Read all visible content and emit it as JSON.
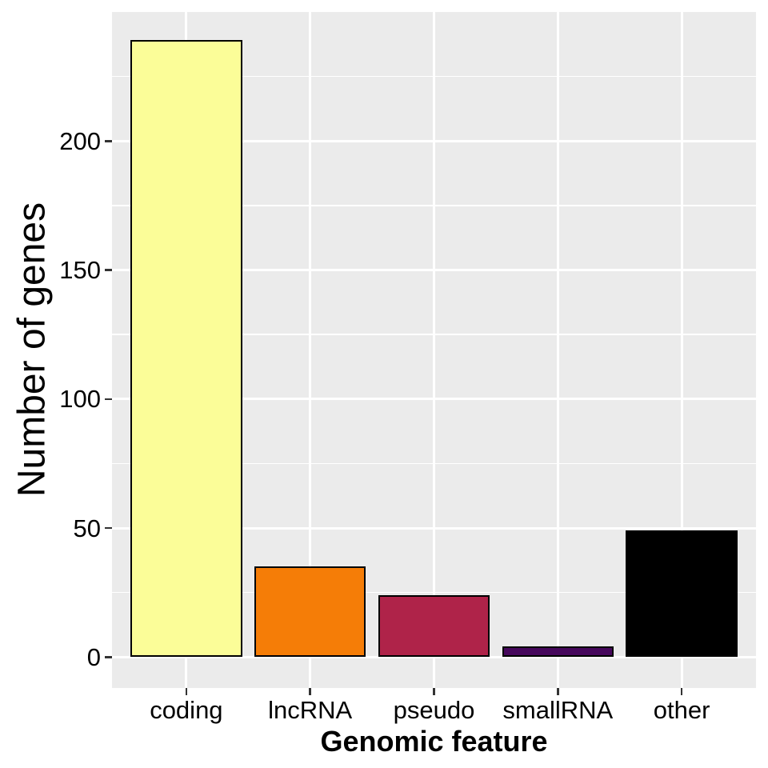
{
  "chart_data": {
    "type": "bar",
    "title": "",
    "xlabel": "Genomic feature",
    "ylabel": "Number of genes",
    "categories": [
      "coding",
      "lncRNA",
      "pseudo",
      "smallRNA",
      "other"
    ],
    "values": [
      239,
      35,
      24,
      4,
      49
    ],
    "bar_colors": [
      "#FBFD98",
      "#F57D07",
      "#AF2349",
      "#46085C",
      "#000000"
    ],
    "bar_border_color": "#000000",
    "bar_width_fraction": 0.9,
    "ylim": [
      -12,
      250
    ],
    "yticks": [
      0,
      50,
      100,
      150,
      200
    ],
    "yticks_minor": [
      25,
      75,
      125,
      175,
      225
    ],
    "grid": true,
    "legend": false,
    "panel_bg": "#EBEBEB",
    "grid_color": "#FFFFFF",
    "tick_color": "#333333",
    "text_color": "#000000"
  }
}
